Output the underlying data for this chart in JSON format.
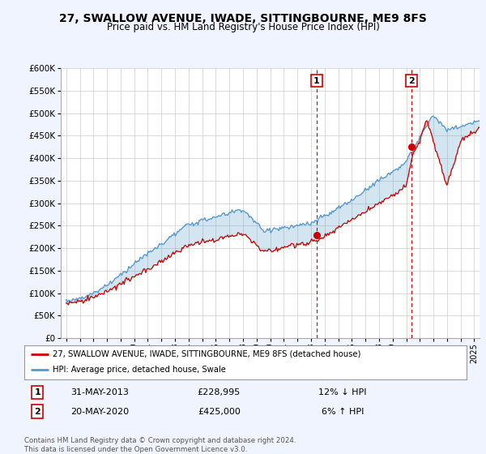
{
  "title": "27, SWALLOW AVENUE, IWADE, SITTINGBOURNE, ME9 8FS",
  "subtitle": "Price paid vs. HM Land Registry's House Price Index (HPI)",
  "legend_line1": "27, SWALLOW AVENUE, IWADE, SITTINGBOURNE, ME9 8FS (detached house)",
  "legend_line2": "HPI: Average price, detached house, Swale",
  "annotation1_date": "31-MAY-2013",
  "annotation1_price": "£228,995",
  "annotation1_pct": "12% ↓ HPI",
  "annotation2_date": "20-MAY-2020",
  "annotation2_price": "£425,000",
  "annotation2_pct": "6% ↑ HPI",
  "footer": "Contains HM Land Registry data © Crown copyright and database right 2024.\nThis data is licensed under the Open Government Licence v3.0.",
  "hpi_color": "#5599cc",
  "price_color": "#cc0000",
  "annotation_color": "#cc0000",
  "fill_color": "#ddeeff",
  "background_color": "#f0f4ff",
  "plot_bg_color": "#ffffff",
  "ylim": [
    0,
    600000
  ],
  "yticks": [
    0,
    50000,
    100000,
    150000,
    200000,
    250000,
    300000,
    350000,
    400000,
    450000,
    500000,
    550000,
    600000
  ],
  "sale1_year": 2013.42,
  "sale1_value": 228995,
  "sale2_year": 2020.38,
  "sale2_value": 425000
}
